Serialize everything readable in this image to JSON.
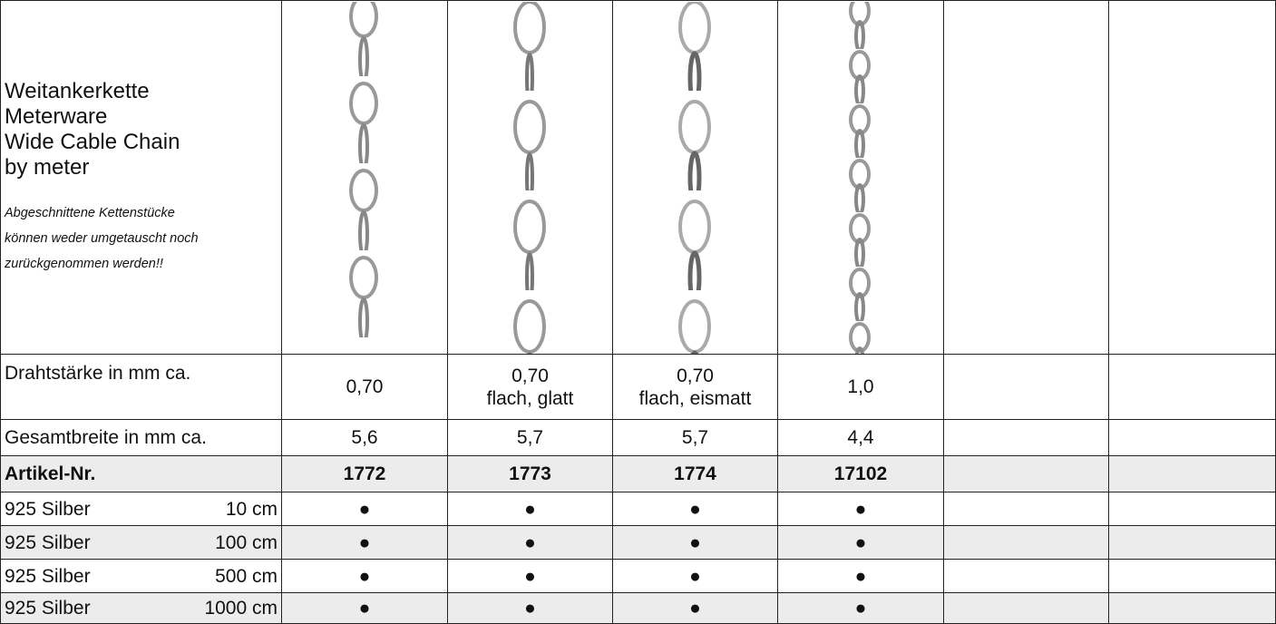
{
  "header": {
    "title": [
      "Weitankerkette",
      "Meterware",
      "Wide Cable Chain",
      "by meter"
    ],
    "note": [
      "Abgeschnittene Kettenstücke",
      "können weder umgetauscht noch",
      "zurückgenommen werden!!"
    ]
  },
  "table": {
    "rows": [
      {
        "label": "Drahtstärke in mm ca.",
        "cells": [
          [
            "0,70"
          ],
          [
            "0,70",
            "flach, glatt"
          ],
          [
            "0,70",
            "flach, eismatt"
          ],
          [
            "1,0"
          ]
        ]
      },
      {
        "label": "Gesamtbreite in mm ca.",
        "cells": [
          "5,6",
          "5,7",
          "5,7",
          "4,4"
        ]
      },
      {
        "label": "Artikel-Nr.",
        "cells": [
          "1772",
          "1773",
          "1774",
          "17102"
        ]
      },
      {
        "label": "925 Silber",
        "length": "10 cm",
        "cells": [
          "●",
          "●",
          "●",
          "●"
        ]
      },
      {
        "label": "925 Silber",
        "length": "100 cm",
        "cells": [
          "●",
          "●",
          "●",
          "●"
        ]
      },
      {
        "label": "925 Silber",
        "length": "500 cm",
        "cells": [
          "●",
          "●",
          "●",
          "●"
        ]
      },
      {
        "label": "925 Silber",
        "length": "1000 cm",
        "cells": [
          "●",
          "●",
          "●",
          "●"
        ]
      }
    ]
  }
}
